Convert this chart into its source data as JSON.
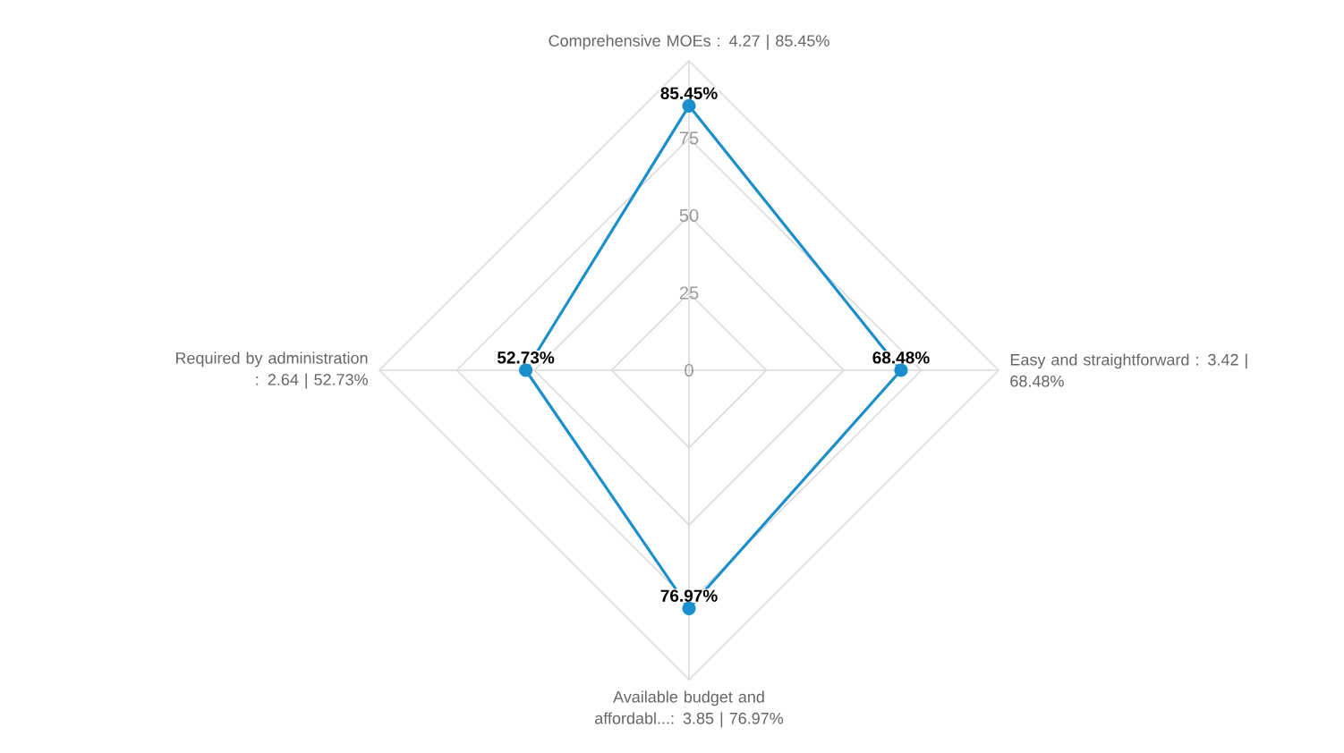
{
  "chart_data": {
    "type": "radar",
    "categories": [
      "Comprehensive MOEs  : 4.27 | 85.45%",
      "Easy and straightforward : 3.42 | 68.48%",
      "Available budget and affordabl...: 3.85 | 76.97%",
      "Required by administration : 2.64 | 52.73%"
    ],
    "series": [
      {
        "color": "#1b8fcb",
        "values": [
          85.45,
          68.48,
          76.97,
          52.73
        ],
        "value_labels": [
          "85.45%",
          "68.48%",
          "76.97%",
          "52.73%"
        ]
      }
    ],
    "ylim": [
      0,
      100
    ],
    "yticks": [
      0,
      25,
      50,
      75
    ],
    "grid": true,
    "marker": "circle"
  }
}
